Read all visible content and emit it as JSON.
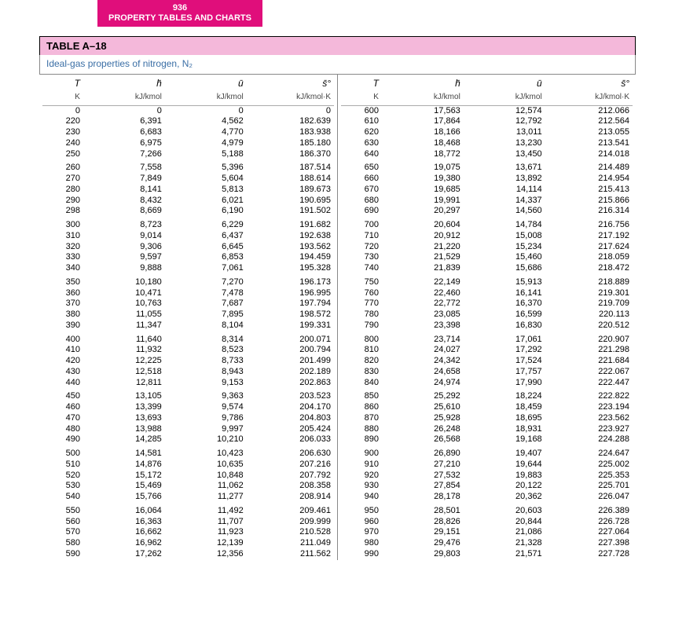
{
  "header": {
    "page_number": "936",
    "section": "PROPERTY TABLES AND CHARTS"
  },
  "table": {
    "label": "TABLE A–18",
    "caption": "Ideal-gas properties of nitrogen, N₂",
    "columns": {
      "T_sym": "T",
      "T_unit": "K",
      "h_sym": "h̄",
      "h_unit": "kJ/kmol",
      "u_sym": "ū",
      "u_unit": "kJ/kmol",
      "s_sym": "s̄°",
      "s_unit": "kJ/kmol·K"
    },
    "groups_left": [
      [
        {
          "T": "0",
          "h": "0",
          "u": "0",
          "s": "0"
        },
        {
          "T": "220",
          "h": "6,391",
          "u": "4,562",
          "s": "182.639"
        },
        {
          "T": "230",
          "h": "6,683",
          "u": "4,770",
          "s": "183.938"
        },
        {
          "T": "240",
          "h": "6,975",
          "u": "4,979",
          "s": "185.180"
        },
        {
          "T": "250",
          "h": "7,266",
          "u": "5,188",
          "s": "186.370"
        }
      ],
      [
        {
          "T": "260",
          "h": "7,558",
          "u": "5,396",
          "s": "187.514"
        },
        {
          "T": "270",
          "h": "7,849",
          "u": "5,604",
          "s": "188.614"
        },
        {
          "T": "280",
          "h": "8,141",
          "u": "5,813",
          "s": "189.673"
        },
        {
          "T": "290",
          "h": "8,432",
          "u": "6,021",
          "s": "190.695"
        },
        {
          "T": "298",
          "h": "8,669",
          "u": "6,190",
          "s": "191.502"
        }
      ],
      [
        {
          "T": "300",
          "h": "8,723",
          "u": "6,229",
          "s": "191.682"
        },
        {
          "T": "310",
          "h": "9,014",
          "u": "6,437",
          "s": "192.638"
        },
        {
          "T": "320",
          "h": "9,306",
          "u": "6,645",
          "s": "193.562"
        },
        {
          "T": "330",
          "h": "9,597",
          "u": "6,853",
          "s": "194.459"
        },
        {
          "T": "340",
          "h": "9,888",
          "u": "7,061",
          "s": "195.328"
        }
      ],
      [
        {
          "T": "350",
          "h": "10,180",
          "u": "7,270",
          "s": "196.173"
        },
        {
          "T": "360",
          "h": "10,471",
          "u": "7,478",
          "s": "196.995"
        },
        {
          "T": "370",
          "h": "10,763",
          "u": "7,687",
          "s": "197.794"
        },
        {
          "T": "380",
          "h": "11,055",
          "u": "7,895",
          "s": "198.572"
        },
        {
          "T": "390",
          "h": "11,347",
          "u": "8,104",
          "s": "199.331"
        }
      ],
      [
        {
          "T": "400",
          "h": "11,640",
          "u": "8,314",
          "s": "200.071"
        },
        {
          "T": "410",
          "h": "11,932",
          "u": "8,523",
          "s": "200.794"
        },
        {
          "T": "420",
          "h": "12,225",
          "u": "8,733",
          "s": "201.499"
        },
        {
          "T": "430",
          "h": "12,518",
          "u": "8,943",
          "s": "202.189"
        },
        {
          "T": "440",
          "h": "12,811",
          "u": "9,153",
          "s": "202.863"
        }
      ],
      [
        {
          "T": "450",
          "h": "13,105",
          "u": "9,363",
          "s": "203.523"
        },
        {
          "T": "460",
          "h": "13,399",
          "u": "9,574",
          "s": "204.170"
        },
        {
          "T": "470",
          "h": "13,693",
          "u": "9,786",
          "s": "204.803"
        },
        {
          "T": "480",
          "h": "13,988",
          "u": "9,997",
          "s": "205.424"
        },
        {
          "T": "490",
          "h": "14,285",
          "u": "10,210",
          "s": "206.033"
        }
      ],
      [
        {
          "T": "500",
          "h": "14,581",
          "u": "10,423",
          "s": "206.630"
        },
        {
          "T": "510",
          "h": "14,876",
          "u": "10,635",
          "s": "207.216"
        },
        {
          "T": "520",
          "h": "15,172",
          "u": "10,848",
          "s": "207.792"
        },
        {
          "T": "530",
          "h": "15,469",
          "u": "11,062",
          "s": "208.358"
        },
        {
          "T": "540",
          "h": "15,766",
          "u": "11,277",
          "s": "208.914"
        }
      ],
      [
        {
          "T": "550",
          "h": "16,064",
          "u": "11,492",
          "s": "209.461"
        },
        {
          "T": "560",
          "h": "16,363",
          "u": "11,707",
          "s": "209.999"
        },
        {
          "T": "570",
          "h": "16,662",
          "u": "11,923",
          "s": "210.528"
        },
        {
          "T": "580",
          "h": "16,962",
          "u": "12,139",
          "s": "211.049"
        },
        {
          "T": "590",
          "h": "17,262",
          "u": "12,356",
          "s": "211.562"
        }
      ]
    ],
    "groups_right": [
      [
        {
          "T": "600",
          "h": "17,563",
          "u": "12,574",
          "s": "212.066"
        },
        {
          "T": "610",
          "h": "17,864",
          "u": "12,792",
          "s": "212.564"
        },
        {
          "T": "620",
          "h": "18,166",
          "u": "13,011",
          "s": "213.055"
        },
        {
          "T": "630",
          "h": "18,468",
          "u": "13,230",
          "s": "213.541"
        },
        {
          "T": "640",
          "h": "18,772",
          "u": "13,450",
          "s": "214.018"
        }
      ],
      [
        {
          "T": "650",
          "h": "19,075",
          "u": "13,671",
          "s": "214.489"
        },
        {
          "T": "660",
          "h": "19,380",
          "u": "13,892",
          "s": "214.954"
        },
        {
          "T": "670",
          "h": "19,685",
          "u": "14,114",
          "s": "215.413"
        },
        {
          "T": "680",
          "h": "19,991",
          "u": "14,337",
          "s": "215.866"
        },
        {
          "T": "690",
          "h": "20,297",
          "u": "14,560",
          "s": "216.314"
        }
      ],
      [
        {
          "T": "700",
          "h": "20,604",
          "u": "14,784",
          "s": "216.756"
        },
        {
          "T": "710",
          "h": "20,912",
          "u": "15,008",
          "s": "217.192"
        },
        {
          "T": "720",
          "h": "21,220",
          "u": "15,234",
          "s": "217.624"
        },
        {
          "T": "730",
          "h": "21,529",
          "u": "15,460",
          "s": "218.059"
        },
        {
          "T": "740",
          "h": "21,839",
          "u": "15,686",
          "s": "218.472"
        }
      ],
      [
        {
          "T": "750",
          "h": "22,149",
          "u": "15,913",
          "s": "218.889"
        },
        {
          "T": "760",
          "h": "22,460",
          "u": "16,141",
          "s": "219.301"
        },
        {
          "T": "770",
          "h": "22,772",
          "u": "16,370",
          "s": "219.709"
        },
        {
          "T": "780",
          "h": "23,085",
          "u": "16,599",
          "s": "220.113"
        },
        {
          "T": "790",
          "h": "23,398",
          "u": "16,830",
          "s": "220.512"
        }
      ],
      [
        {
          "T": "800",
          "h": "23,714",
          "u": "17,061",
          "s": "220.907"
        },
        {
          "T": "810",
          "h": "24,027",
          "u": "17,292",
          "s": "221.298"
        },
        {
          "T": "820",
          "h": "24,342",
          "u": "17,524",
          "s": "221.684"
        },
        {
          "T": "830",
          "h": "24,658",
          "u": "17,757",
          "s": "222.067"
        },
        {
          "T": "840",
          "h": "24,974",
          "u": "17,990",
          "s": "222.447"
        }
      ],
      [
        {
          "T": "850",
          "h": "25,292",
          "u": "18,224",
          "s": "222.822"
        },
        {
          "T": "860",
          "h": "25,610",
          "u": "18,459",
          "s": "223.194"
        },
        {
          "T": "870",
          "h": "25,928",
          "u": "18,695",
          "s": "223.562"
        },
        {
          "T": "880",
          "h": "26,248",
          "u": "18,931",
          "s": "223.927"
        },
        {
          "T": "890",
          "h": "26,568",
          "u": "19,168",
          "s": "224.288"
        }
      ],
      [
        {
          "T": "900",
          "h": "26,890",
          "u": "19,407",
          "s": "224.647"
        },
        {
          "T": "910",
          "h": "27,210",
          "u": "19,644",
          "s": "225.002"
        },
        {
          "T": "920",
          "h": "27,532",
          "u": "19,883",
          "s": "225.353"
        },
        {
          "T": "930",
          "h": "27,854",
          "u": "20,122",
          "s": "225.701"
        },
        {
          "T": "940",
          "h": "28,178",
          "u": "20,362",
          "s": "226.047"
        }
      ],
      [
        {
          "T": "950",
          "h": "28,501",
          "u": "20,603",
          "s": "226.389"
        },
        {
          "T": "960",
          "h": "28,826",
          "u": "20,844",
          "s": "226.728"
        },
        {
          "T": "970",
          "h": "29,151",
          "u": "21,086",
          "s": "227.064"
        },
        {
          "T": "980",
          "h": "29,476",
          "u": "21,328",
          "s": "227.398"
        },
        {
          "T": "990",
          "h": "29,803",
          "u": "21,571",
          "s": "227.728"
        }
      ]
    ]
  },
  "style": {
    "header_bg": "#e00e7b",
    "title_bg": "#f4b8da",
    "caption_color": "#3a6ea5",
    "border_color": "#888888",
    "font_size_body": 11,
    "font_size_title": 13
  }
}
